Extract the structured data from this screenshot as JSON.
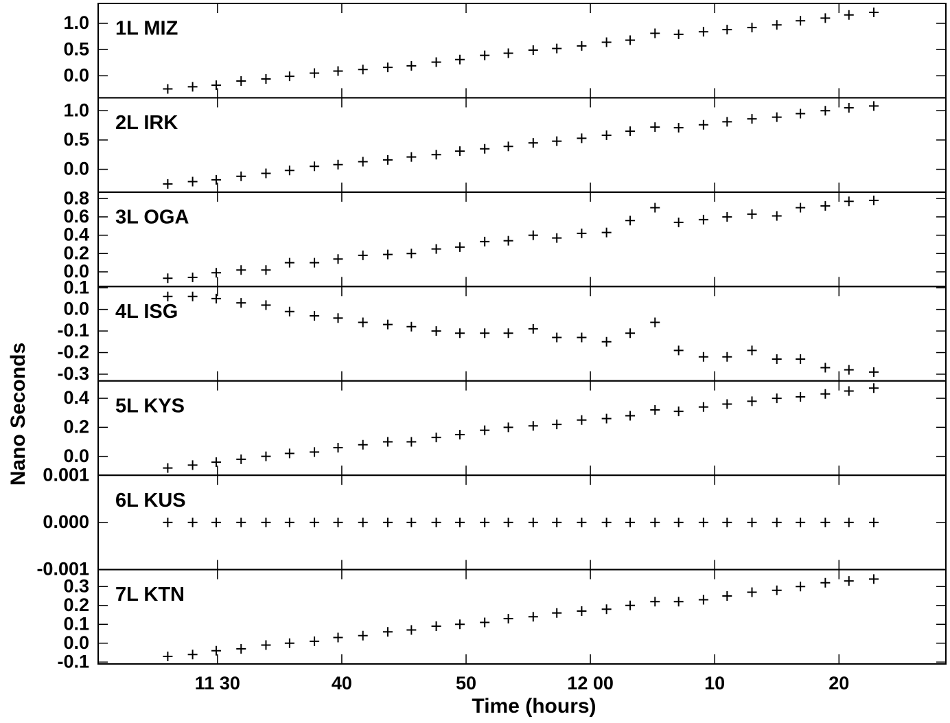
{
  "chart_data": {
    "type": "scatter",
    "xlabel": "Time (hours)",
    "ylabel": "Nano Seconds",
    "color": "#000000",
    "x": [
      26.0,
      28.0,
      29.9,
      31.9,
      33.9,
      35.8,
      37.8,
      39.7,
      41.7,
      43.7,
      45.6,
      47.6,
      49.5,
      51.5,
      53.4,
      55.4,
      57.3,
      59.3,
      61.3,
      63.2,
      65.2,
      67.1,
      69.1,
      71.0,
      73.0,
      75.0,
      76.9,
      78.9,
      80.8,
      82.8
    ],
    "xlim": [
      20.4,
      88.6
    ],
    "xticks": [
      {
        "value": 30,
        "label": "11 30"
      },
      40,
      50,
      {
        "value": 60,
        "label": "12 00"
      },
      {
        "value": 70,
        "label": "10"
      },
      {
        "value": 80,
        "label": "20"
      }
    ],
    "panels": [
      {
        "title": "1L MIZ",
        "ylim": [
          -0.42,
          1.38
        ],
        "yticks": [
          {
            "value": 0,
            "label": "0.0"
          },
          0.5,
          {
            "value": 1,
            "label": "1.0"
          }
        ],
        "values": [
          -0.25,
          -0.21,
          -0.18,
          -0.1,
          -0.06,
          -0.01,
          0.05,
          0.09,
          0.12,
          0.16,
          0.19,
          0.26,
          0.31,
          0.39,
          0.43,
          0.49,
          0.52,
          0.57,
          0.64,
          0.68,
          0.81,
          0.79,
          0.84,
          0.88,
          0.92,
          0.97,
          1.05,
          1.1,
          1.16,
          1.21
        ]
      },
      {
        "title": "2L IRK",
        "ylim": [
          -0.39,
          1.22
        ],
        "yticks": [
          {
            "value": 0,
            "label": "0.0"
          },
          0.5,
          {
            "value": 1,
            "label": "1.0"
          }
        ],
        "values": [
          -0.25,
          -0.21,
          -0.18,
          -0.12,
          -0.07,
          -0.02,
          0.05,
          0.08,
          0.13,
          0.16,
          0.21,
          0.25,
          0.31,
          0.35,
          0.39,
          0.45,
          0.48,
          0.53,
          0.58,
          0.65,
          0.72,
          0.71,
          0.76,
          0.81,
          0.86,
          0.89,
          0.95,
          1.0,
          1.05,
          1.08
        ]
      },
      {
        "title": "3L OGA",
        "ylim": [
          -0.16,
          0.87
        ],
        "yticks": [
          {
            "value": 0,
            "label": "0.0"
          },
          0.2,
          0.4,
          0.6,
          0.8
        ],
        "values": [
          -0.07,
          -0.06,
          -0.01,
          0.02,
          0.02,
          0.1,
          0.1,
          0.14,
          0.18,
          0.19,
          0.2,
          0.25,
          0.27,
          0.33,
          0.34,
          0.4,
          0.37,
          0.42,
          0.43,
          0.56,
          0.7,
          0.54,
          0.57,
          0.6,
          0.63,
          0.61,
          0.7,
          0.72,
          0.77,
          0.78
        ]
      },
      {
        "title": "4L ISG",
        "ylim": [
          -0.331,
          0.106
        ],
        "yticks": [
          -0.3,
          -0.2,
          -0.1,
          {
            "value": 0,
            "label": "0.0"
          },
          0.1
        ],
        "values": [
          0.06,
          0.06,
          0.05,
          0.03,
          0.02,
          -0.01,
          -0.03,
          -0.04,
          -0.06,
          -0.07,
          -0.08,
          -0.1,
          -0.11,
          -0.11,
          -0.11,
          -0.09,
          -0.13,
          -0.13,
          -0.15,
          -0.11,
          -0.06,
          -0.19,
          -0.22,
          -0.22,
          -0.19,
          -0.23,
          -0.23,
          -0.27,
          -0.28,
          -0.29
        ]
      },
      {
        "title": "5L KYS",
        "ylim": [
          -0.13,
          0.52
        ],
        "yticks": [
          {
            "value": 0,
            "label": "0.0"
          },
          0.2,
          0.4
        ],
        "values": [
          -0.08,
          -0.06,
          -0.04,
          -0.02,
          0.0,
          0.02,
          0.03,
          0.06,
          0.08,
          0.1,
          0.1,
          0.13,
          0.15,
          0.18,
          0.2,
          0.21,
          0.22,
          0.25,
          0.26,
          0.28,
          0.32,
          0.31,
          0.34,
          0.36,
          0.38,
          0.4,
          0.41,
          0.43,
          0.45,
          0.47
        ]
      },
      {
        "title": "6L KUS",
        "ylim": [
          -0.001,
          0.001
        ],
        "yticks": [
          -0.001,
          {
            "value": 0,
            "label": "0.000"
          },
          0.001
        ],
        "values": [
          0,
          0,
          0,
          0,
          0,
          0,
          0,
          0,
          0,
          0,
          0,
          0,
          0,
          0,
          0,
          0,
          0,
          0,
          0,
          0,
          0,
          0,
          0,
          0,
          0,
          0,
          0,
          0,
          0,
          0
        ]
      },
      {
        "title": "7L KTN",
        "ylim": [
          -0.11,
          0.39
        ],
        "yticks": [
          -0.1,
          {
            "value": 0,
            "label": "0.0"
          },
          0.1,
          0.2,
          0.3
        ],
        "values": [
          -0.07,
          -0.06,
          -0.04,
          -0.03,
          -0.01,
          0.0,
          0.01,
          0.03,
          0.04,
          0.06,
          0.07,
          0.09,
          0.1,
          0.11,
          0.13,
          0.14,
          0.16,
          0.17,
          0.18,
          0.2,
          0.22,
          0.22,
          0.23,
          0.25,
          0.27,
          0.28,
          0.3,
          0.32,
          0.33,
          0.34
        ]
      }
    ]
  }
}
